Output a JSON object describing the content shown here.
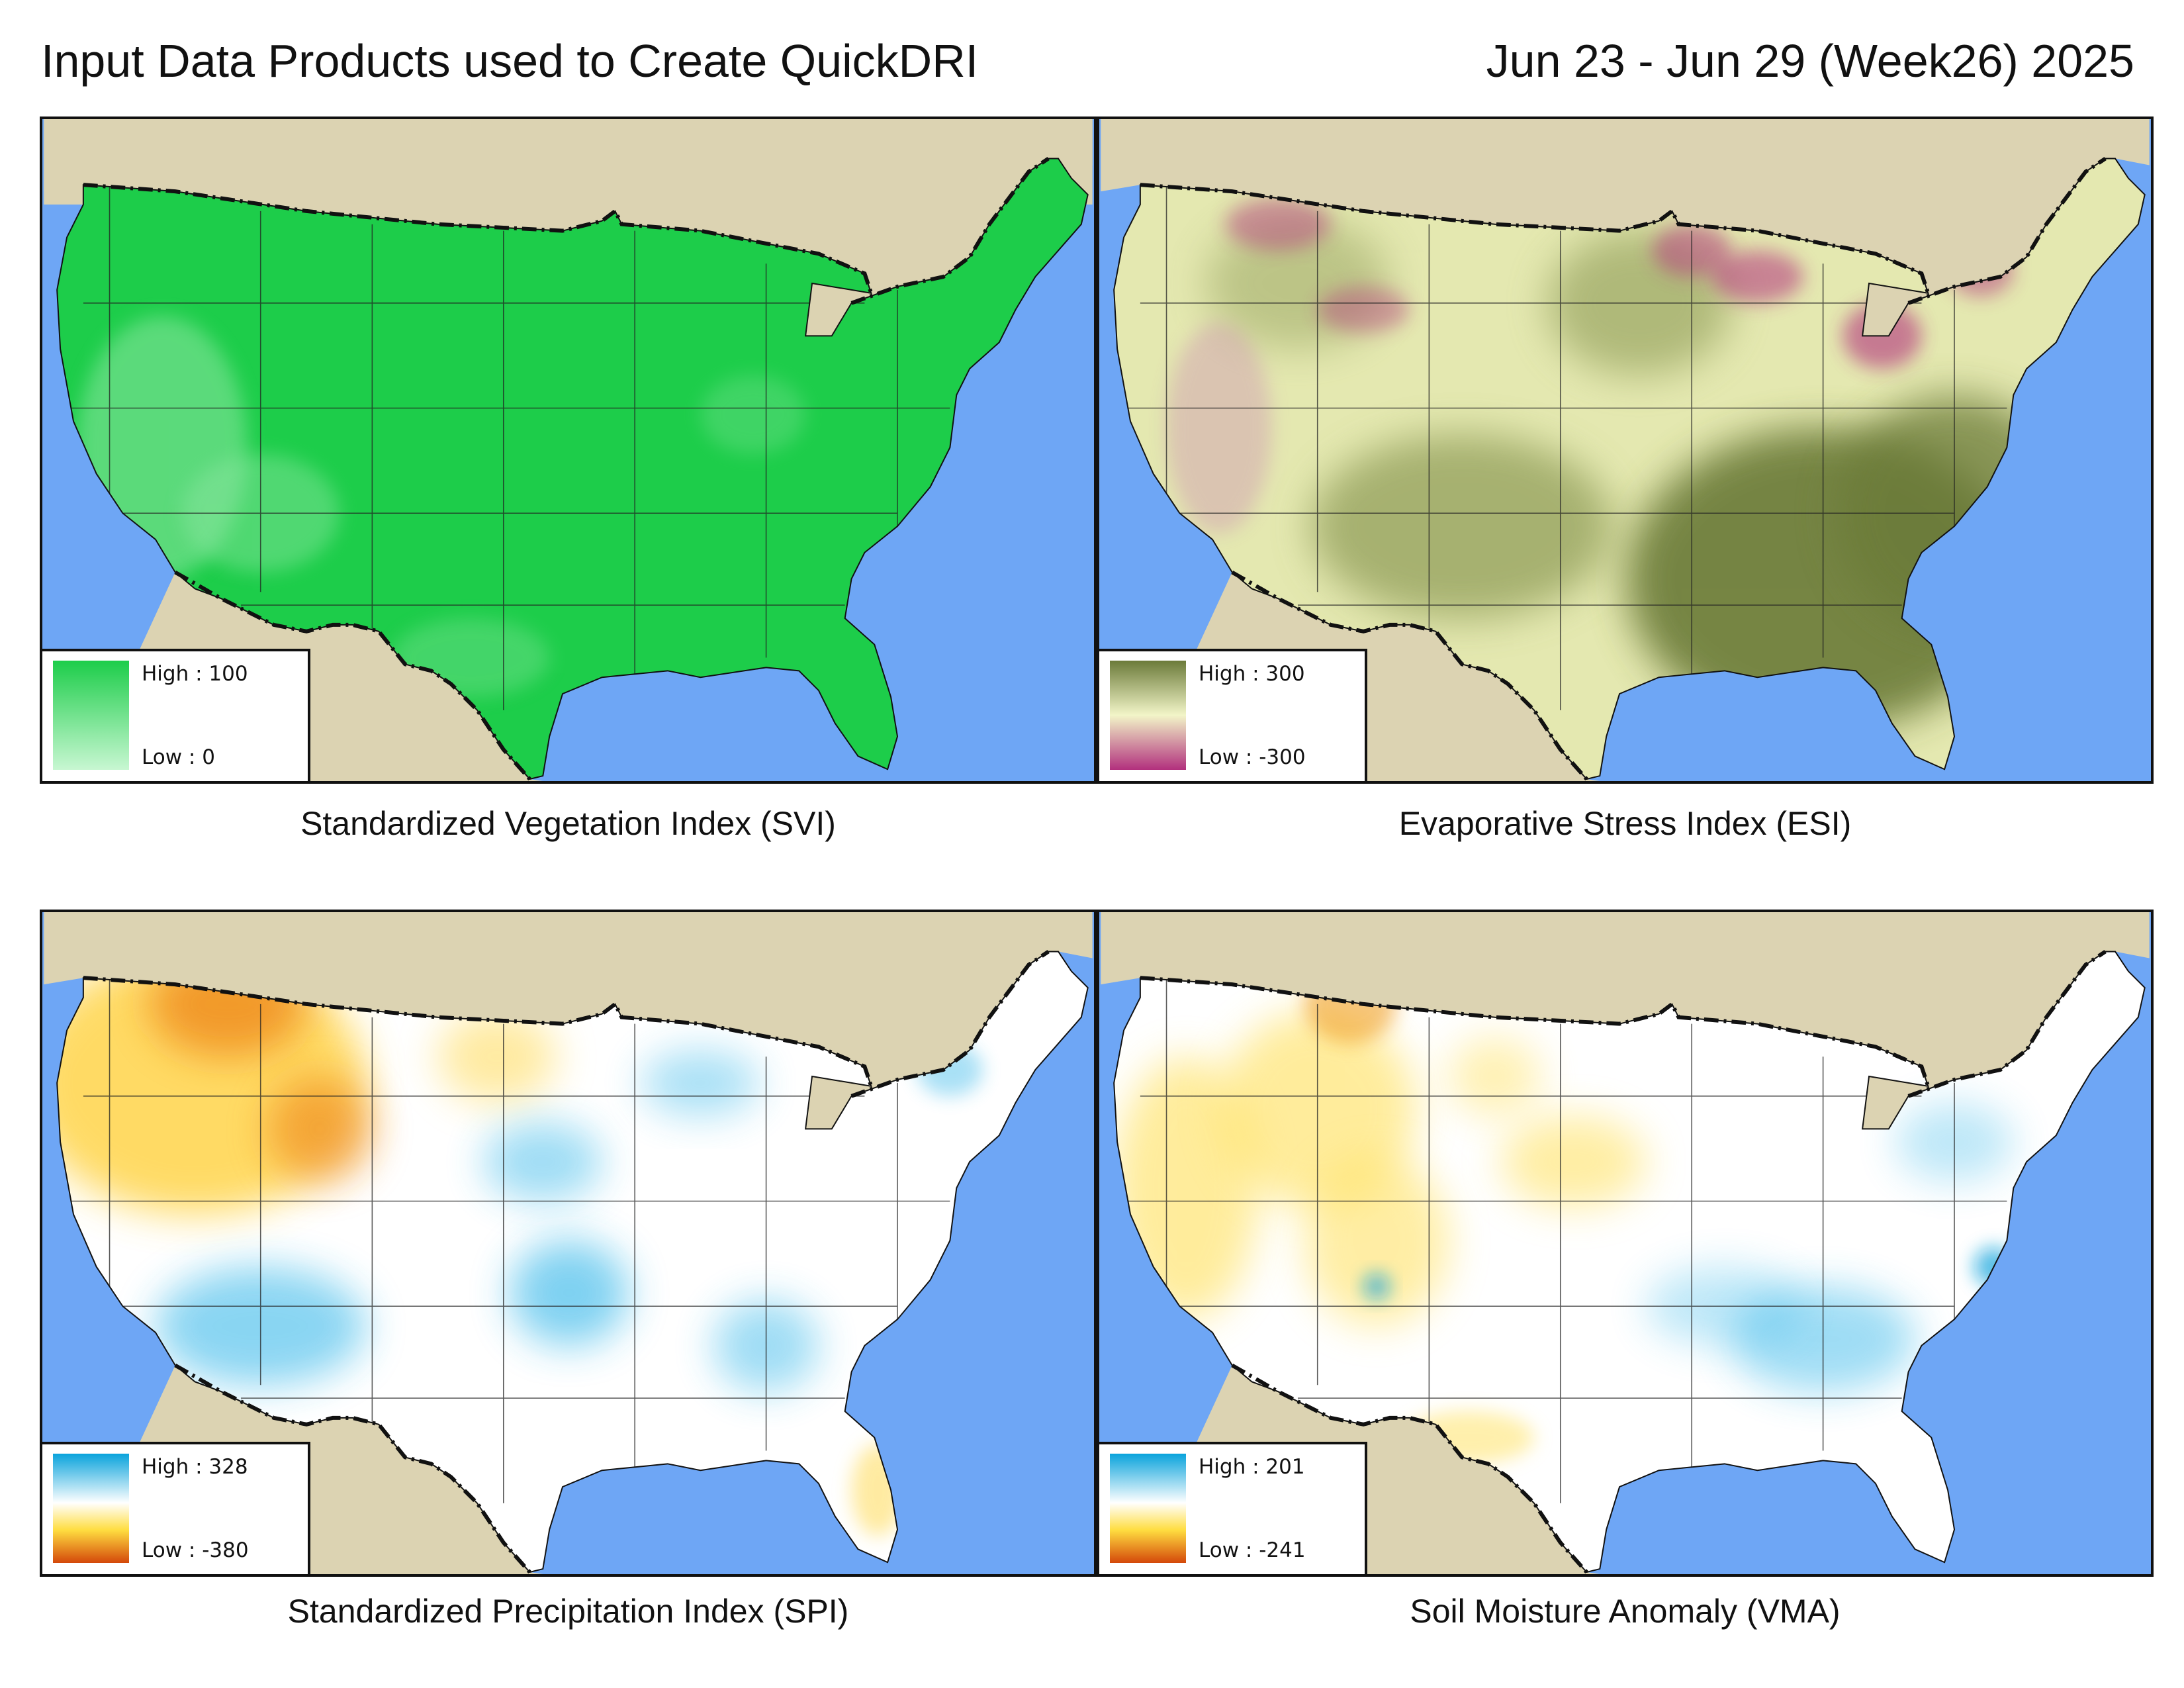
{
  "header": {
    "title": "Input Data Products used to Create QuickDRI",
    "date_range": "Jun 23 - Jun 29 (Week26) 2025"
  },
  "colors": {
    "water": "#6ea6f5",
    "land_outside": "#dcd3b2",
    "svi_high": "#1dcd4a",
    "svi_low": "#c8f7d2",
    "esi_high": "#6b7a39",
    "esi_mid": "#f2f5c8",
    "esi_low": "#b2307d",
    "spi_high": "#0aa3dc",
    "spi_mid": "#ffffff",
    "spi_low": "#d4480a",
    "vma_high": "#0aa3dc",
    "vma_mid": "#ffffff",
    "vma_low": "#d4480a"
  },
  "panels": [
    {
      "id": "svi",
      "caption": "Standardized Vegetation Index (SVI)",
      "legend_high": "High : 100",
      "legend_low": "Low : 0"
    },
    {
      "id": "esi",
      "caption": "Evaporative Stress Index (ESI)",
      "legend_high": "High : 300",
      "legend_low": "Low : -300"
    },
    {
      "id": "spi",
      "caption": "Standardized Precipitation Index (SPI)",
      "legend_high": "High : 328",
      "legend_low": "Low : -380"
    },
    {
      "id": "vma",
      "caption": "Soil Moisture Anomaly (VMA)",
      "legend_high": "High : 201",
      "legend_low": "Low : -241"
    }
  ]
}
